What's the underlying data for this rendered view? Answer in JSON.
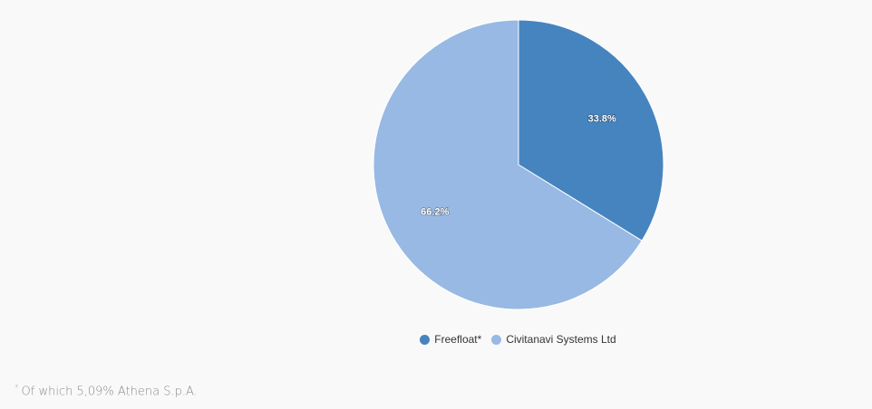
{
  "chart_data": {
    "type": "pie",
    "categories": [
      "Freefloat*",
      "Civitanavi Systems Ltd"
    ],
    "values": [
      33.8,
      66.2
    ],
    "data_labels": [
      "33.8%",
      "66.2%"
    ],
    "colors": [
      "#4684c0",
      "#97b9e3"
    ],
    "start_angle_deg": 0,
    "direction": "clockwise",
    "legend_position": "bottom-center"
  },
  "footnote": {
    "marker": "*",
    "text": "Of which 5,09% Athena S.p.A."
  }
}
